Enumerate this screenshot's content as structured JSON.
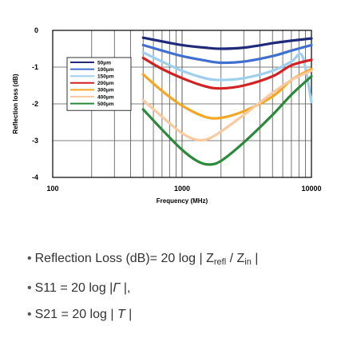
{
  "chart_data": {
    "type": "line",
    "xlabel": "Frequency (MHz)",
    "ylabel": "Reflection loss (dB)",
    "xscale": "log",
    "xlim": [
      100,
      10000
    ],
    "ylim": [
      -4,
      0
    ],
    "xticks": [
      "100",
      "1000",
      "10000"
    ],
    "yticks": [
      "0",
      "-1",
      "-2",
      "-3",
      "-4"
    ],
    "grid": true,
    "legend_position": "top-left",
    "series": [
      {
        "name": "50μm",
        "color": "#1f2a7a",
        "points": [
          [
            500,
            -0.2
          ],
          [
            700,
            -0.3
          ],
          [
            1000,
            -0.4
          ],
          [
            1500,
            -0.47
          ],
          [
            2000,
            -0.5
          ],
          [
            3000,
            -0.47
          ],
          [
            5000,
            -0.35
          ],
          [
            7000,
            -0.28
          ],
          [
            10000,
            -0.22
          ]
        ]
      },
      {
        "name": "100μm",
        "color": "#3f6fd0",
        "points": [
          [
            500,
            -0.4
          ],
          [
            700,
            -0.55
          ],
          [
            1000,
            -0.7
          ],
          [
            1500,
            -0.82
          ],
          [
            2000,
            -0.88
          ],
          [
            3000,
            -0.85
          ],
          [
            5000,
            -0.7
          ],
          [
            7000,
            -0.55
          ],
          [
            10000,
            -0.4
          ]
        ]
      },
      {
        "name": "150μm",
        "color": "#9fcff0",
        "points": [
          [
            500,
            -0.6
          ],
          [
            700,
            -0.85
          ],
          [
            1000,
            -1.1
          ],
          [
            1500,
            -1.3
          ],
          [
            2000,
            -1.35
          ],
          [
            3000,
            -1.3
          ],
          [
            5000,
            -1.1
          ],
          [
            7000,
            -0.85
          ],
          [
            8500,
            -0.7
          ],
          [
            10000,
            -1.95
          ]
        ]
      },
      {
        "name": "200μm",
        "color": "#d42020",
        "points": [
          [
            500,
            -0.75
          ],
          [
            700,
            -1.05
          ],
          [
            1000,
            -1.3
          ],
          [
            1500,
            -1.52
          ],
          [
            2000,
            -1.58
          ],
          [
            3000,
            -1.5
          ],
          [
            5000,
            -1.25
          ],
          [
            7000,
            -0.95
          ],
          [
            10000,
            -0.8
          ]
        ]
      },
      {
        "name": "300μm",
        "color": "#f5a623",
        "points": [
          [
            500,
            -1.2
          ],
          [
            700,
            -1.65
          ],
          [
            1000,
            -2.05
          ],
          [
            1500,
            -2.35
          ],
          [
            2000,
            -2.38
          ],
          [
            3000,
            -2.2
          ],
          [
            5000,
            -1.8
          ],
          [
            7000,
            -1.35
          ],
          [
            10000,
            -1.05
          ]
        ]
      },
      {
        "name": "400μm",
        "color": "#f9c9a0",
        "points": [
          [
            500,
            -1.9
          ],
          [
            700,
            -2.35
          ],
          [
            1000,
            -2.8
          ],
          [
            1300,
            -2.98
          ],
          [
            1600,
            -2.95
          ],
          [
            2000,
            -2.75
          ],
          [
            3000,
            -2.3
          ],
          [
            5000,
            -1.7
          ],
          [
            7000,
            -1.35
          ],
          [
            10000,
            -1.1
          ]
        ]
      },
      {
        "name": "500μm",
        "color": "#2a8a3a",
        "points": [
          [
            500,
            -2.15
          ],
          [
            700,
            -2.7
          ],
          [
            1000,
            -3.25
          ],
          [
            1300,
            -3.55
          ],
          [
            1600,
            -3.65
          ],
          [
            2000,
            -3.55
          ],
          [
            3000,
            -3.05
          ],
          [
            5000,
            -2.3
          ],
          [
            7000,
            -1.75
          ],
          [
            10000,
            -1.25
          ]
        ]
      }
    ]
  },
  "formulas": {
    "line1": {
      "bullet": "•",
      "prefix": "Reflection Loss (dB)= 20 log | Z",
      "sub1": "refl",
      "mid": "  /  Z",
      "sub2": "in",
      "suffix": " |"
    },
    "line2": {
      "bullet": "•",
      "prefix": "S11 = 20 log |",
      "symbol": "Γ",
      "suffix": " |,"
    },
    "line3": {
      "bullet": "•",
      "prefix": "S21 = 20 log | ",
      "symbol": "T",
      "suffix": " |"
    }
  }
}
